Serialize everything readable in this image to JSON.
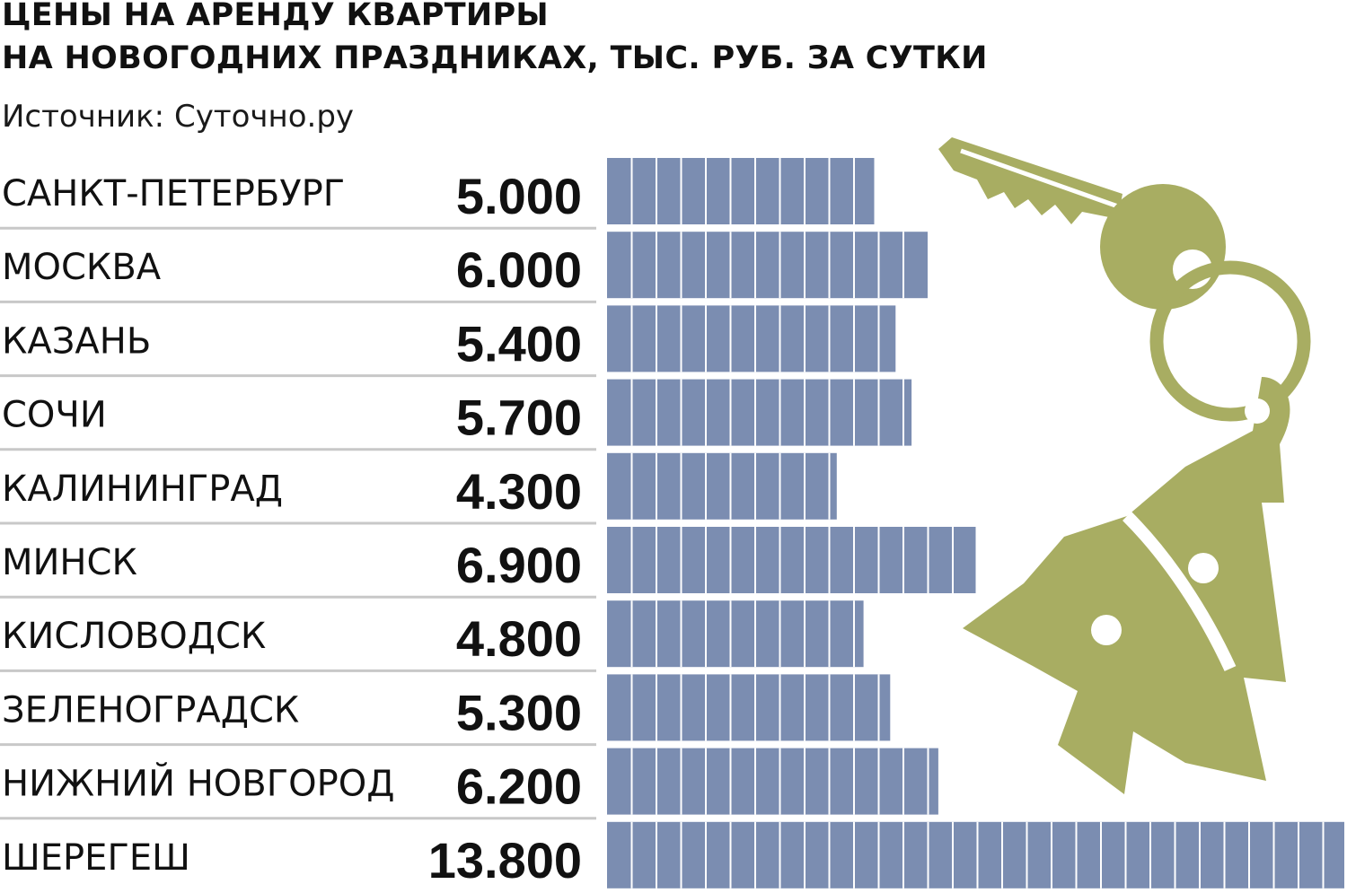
{
  "title": {
    "line1": "ЦЕНЫ НА АРЕНДУ КВАРТИРЫ",
    "line2": "НА НОВОГОДНИХ ПРАЗДНИКАХ, ТЫС. РУБ. ЗА СУТКИ"
  },
  "source": "Источник: Суточно.ру",
  "colors": {
    "bar": "#7b8db1",
    "bar_segment_divider": "#ffffff",
    "row_divider": "#c8c8c8",
    "illustration": "#a8ad62"
  },
  "illustration": {
    "icon": "key-with-christmas-tree-keychain-icon"
  },
  "chart_data": {
    "type": "bar",
    "orientation": "horizontal",
    "categories": [
      "САНКТ-ПЕТЕРБУРГ",
      "МОСКВА",
      "КАЗАНЬ",
      "СОЧИ",
      "КАЛИНИНГРАД",
      "МИНСК",
      "КИСЛОВОДСК",
      "ЗЕЛЕНОГРАДСК",
      "НИЖНИЙ НОВГОРОД",
      "ШЕРЕГЕШ"
    ],
    "values": [
      5.0,
      6.0,
      5.4,
      5.7,
      4.3,
      6.9,
      4.8,
      5.3,
      6.2,
      13.8
    ],
    "value_labels": [
      "5.000",
      "6.000",
      "5.400",
      "5.700",
      "4.300",
      "6.900",
      "4.800",
      "5.300",
      "6.200",
      "13.800"
    ],
    "title": "ЦЕНЫ НА АРЕНДУ КВАРТИРЫ НА НОВОГОДНИХ ПРАЗДНИКАХ, ТЫС. РУБ. ЗА СУТКИ",
    "xlabel": "",
    "ylabel": "",
    "xlim": [
      0,
      13.8
    ],
    "grid": false,
    "legend": "none"
  }
}
